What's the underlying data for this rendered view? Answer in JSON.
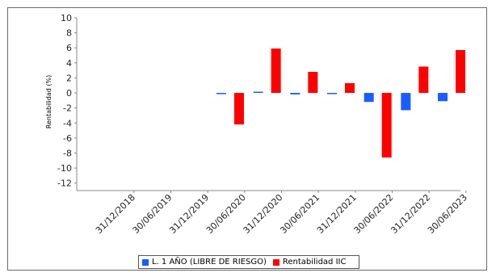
{
  "chart_data": {
    "type": "bar",
    "title": "",
    "xlabel": "",
    "ylabel": "Rentabilidad (%)",
    "ylim": [
      -13,
      10
    ],
    "yticks": [
      10,
      8,
      6,
      4,
      2,
      0,
      -2,
      -4,
      -6,
      -8,
      -10,
      -12
    ],
    "categories": [
      "31/12/2018",
      "30/06/2019",
      "31/12/2019",
      "30/06/2020",
      "31/12/2020",
      "30/06/2021",
      "31/12/2021",
      "30/06/2022",
      "31/12/2022",
      "30/06/2023"
    ],
    "series": [
      {
        "name": "L. 1 AÑO (LIBRE DE RIESGO)",
        "color": "#1a5cff",
        "values": [
          null,
          null,
          null,
          -0.1,
          0.1,
          -0.2,
          -0.05,
          -1.2,
          -2.3,
          -1.1
        ]
      },
      {
        "name": "Rentabilidad IIC",
        "color": "#ff0000",
        "values": [
          null,
          null,
          null,
          -4.2,
          5.9,
          2.8,
          1.3,
          -8.6,
          3.5,
          5.7
        ]
      }
    ],
    "grid": false,
    "legend": "bottom-center"
  }
}
